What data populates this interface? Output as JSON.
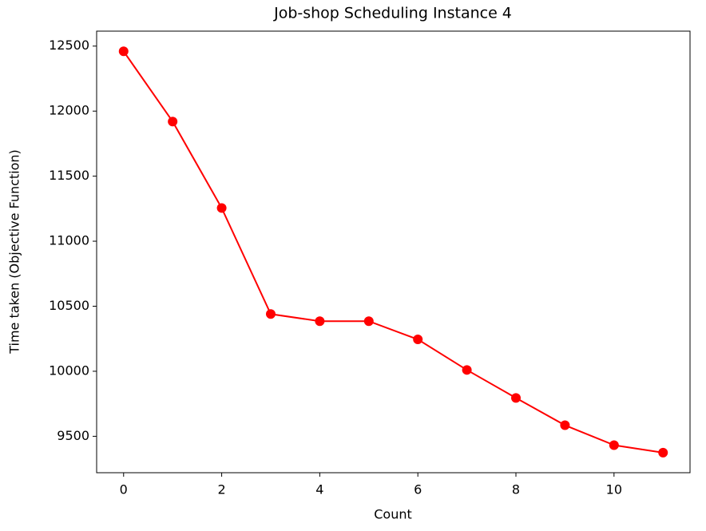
{
  "chart_data": {
    "type": "line",
    "title": "Job-shop Scheduling Instance 4",
    "xlabel": "Count",
    "ylabel": "Time taken (Objective Function)",
    "x": [
      0,
      1,
      2,
      3,
      4,
      5,
      6,
      7,
      8,
      9,
      10,
      11
    ],
    "series": [
      {
        "name": "Time taken",
        "color": "#ff0000",
        "values": [
          12460,
          11920,
          11255,
          10440,
          10385,
          10385,
          10245,
          10010,
          9795,
          9585,
          9432,
          9374
        ]
      }
    ],
    "xlim": [
      -0.55,
      11.55
    ],
    "xticks": [
      0,
      2,
      4,
      6,
      8,
      10
    ],
    "ylim": [
      9220,
      12615
    ],
    "yticks": [
      9500,
      10000,
      10500,
      11000,
      11500,
      12000,
      12500
    ],
    "grid": false,
    "marker": "circle"
  }
}
